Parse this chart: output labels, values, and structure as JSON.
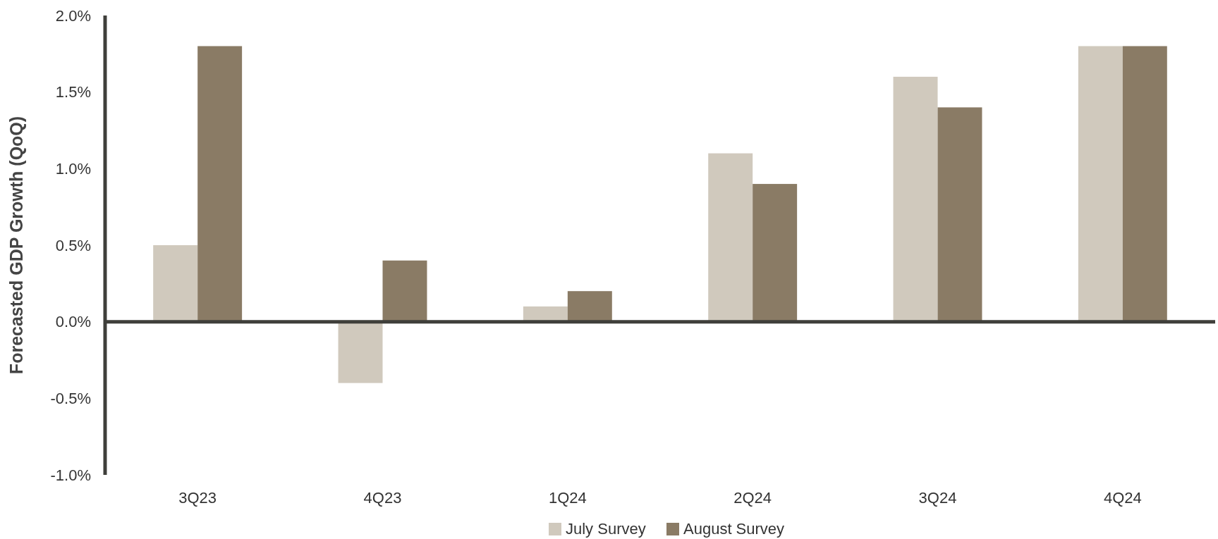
{
  "chart_data": {
    "type": "bar",
    "ylabel": "Forecasted GDP Growth (QoQ)",
    "categories": [
      "3Q23",
      "4Q23",
      "1Q24",
      "2Q24",
      "3Q24",
      "4Q24"
    ],
    "series": [
      {
        "name": "July Survey",
        "color": "#d0c9bd",
        "values": [
          0.5,
          -0.4,
          0.1,
          1.1,
          1.6,
          1.8
        ]
      },
      {
        "name": "August Survey",
        "color": "#8a7b65",
        "values": [
          1.8,
          0.4,
          0.2,
          0.9,
          1.4,
          1.8
        ]
      }
    ],
    "ylim": [
      -1.0,
      2.0
    ],
    "yticks": [
      {
        "value": -1.0,
        "label": "-1.0%"
      },
      {
        "value": -0.5,
        "label": "-0.5%"
      },
      {
        "value": 0,
        "label": "0.0%"
      },
      {
        "value": 0.5,
        "label": "0.5%"
      },
      {
        "value": 1.0,
        "label": "1.0%"
      },
      {
        "value": 1.5,
        "label": "1.5%"
      },
      {
        "value": 2.0,
        "label": "2.0%"
      }
    ],
    "legend": "bottom"
  }
}
